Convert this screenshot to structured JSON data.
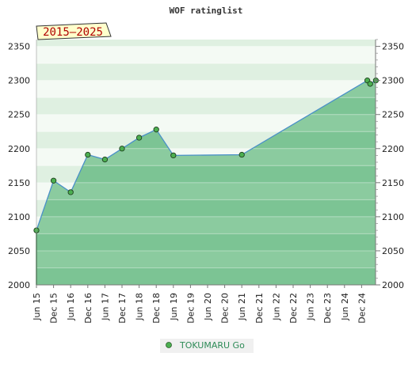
{
  "chart_data": {
    "type": "area",
    "title": "WOF ratinglist",
    "badge": "2015–2025",
    "xlabel": "",
    "ylabel": "",
    "x_ticks": [
      "Jun 15",
      "Dec 15",
      "Jun 16",
      "Dec 16",
      "Jun 17",
      "Dec 17",
      "Jun 18",
      "Dec 18",
      "Jun 19",
      "Dec 19",
      "Jun 20",
      "Dec 20",
      "Jun 21",
      "Dec 21",
      "Jun 22",
      "Dec 22",
      "Jun 23",
      "Dec 23",
      "Jun 24",
      "Dec 24"
    ],
    "y_ticks": [
      2000,
      2050,
      2100,
      2150,
      2200,
      2250,
      2300,
      2350
    ],
    "ylim": [
      2000,
      2360
    ],
    "grid": true,
    "legend_position": "bottom-center",
    "series": [
      {
        "name": "TOKUMARU Go",
        "color": "#4a90c8",
        "marker_color": "#4caf50",
        "points": [
          {
            "x": "Jun 15",
            "y": 2080
          },
          {
            "x": "Dec 15",
            "y": 2153
          },
          {
            "x": "Jun 16",
            "y": 2136
          },
          {
            "x": "Dec 16",
            "y": 2191
          },
          {
            "x": "Jun 17",
            "y": 2184
          },
          {
            "x": "Dec 17",
            "y": 2200
          },
          {
            "x": "Jun 18",
            "y": 2216
          },
          {
            "x": "Dec 18",
            "y": 2228
          },
          {
            "x": "Jun 19",
            "y": 2190
          },
          {
            "x": "Jun 21",
            "y": 2191
          },
          {
            "x": "Feb 25",
            "y": 2300
          },
          {
            "x": "Mar 25",
            "y": 2295
          },
          {
            "x": "May 25",
            "y": 2300
          }
        ]
      }
    ]
  }
}
